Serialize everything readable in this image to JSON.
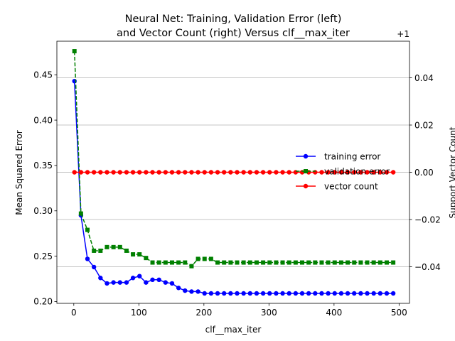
{
  "chart_data": {
    "type": "line",
    "title_lines": [
      "Neural Net: Training, Validation Error (left)",
      "and Vector Count (right) Versus clf__max_iter"
    ],
    "xlabel": "clf__max_iter",
    "ylabel": "Mean Squared Error",
    "ylabel_right": "Support Vector Count",
    "right_offset_text": "+1",
    "xlim": [
      -26,
      516
    ],
    "ylim": [
      0.198,
      0.487
    ],
    "ylim_right": [
      -0.0555,
      0.0555
    ],
    "x_ticks": [
      0,
      100,
      200,
      300,
      400,
      500
    ],
    "x_tick_labels": [
      "0",
      "100",
      "200",
      "300",
      "400",
      "500"
    ],
    "y_ticks": [
      0.2,
      0.25,
      0.3,
      0.35,
      0.4,
      0.45
    ],
    "y_tick_labels": [
      "0.20",
      "0.25",
      "0.30",
      "0.35",
      "0.40",
      "0.45"
    ],
    "y_ticks_right": [
      -0.04,
      -0.02,
      0.0,
      0.02,
      0.04
    ],
    "y_tick_labels_right": [
      "−0.04",
      "−0.02",
      "0.00",
      "0.02",
      "0.04"
    ],
    "grid": "horizontal lines at right-axis ticks",
    "legend_position": "center-right",
    "x": [
      1,
      11,
      21,
      31,
      41,
      51,
      61,
      71,
      81,
      91,
      101,
      111,
      121,
      131,
      141,
      151,
      161,
      171,
      181,
      191,
      201,
      211,
      221,
      231,
      241,
      251,
      261,
      271,
      281,
      291,
      301,
      311,
      321,
      331,
      341,
      351,
      361,
      371,
      381,
      391,
      401,
      411,
      421,
      431,
      441,
      451,
      461,
      471,
      481,
      491
    ],
    "series": [
      {
        "name": "training error",
        "axis": "left",
        "color": "#0000ff",
        "marker": "circle",
        "linestyle": "solid",
        "values": [
          0.443,
          0.295,
          0.247,
          0.238,
          0.226,
          0.22,
          0.221,
          0.221,
          0.221,
          0.226,
          0.228,
          0.221,
          0.224,
          0.224,
          0.221,
          0.22,
          0.215,
          0.212,
          0.211,
          0.211,
          0.209,
          0.209,
          0.209,
          0.209,
          0.209,
          0.209,
          0.209,
          0.209,
          0.209,
          0.209,
          0.209,
          0.209,
          0.209,
          0.209,
          0.209,
          0.209,
          0.209,
          0.209,
          0.209,
          0.209,
          0.209,
          0.209,
          0.209,
          0.209,
          0.209,
          0.209,
          0.209,
          0.209,
          0.209,
          0.209
        ]
      },
      {
        "name": "validation error",
        "axis": "left",
        "color": "#008000",
        "marker": "square",
        "linestyle": "dashed",
        "values": [
          0.476,
          0.297,
          0.279,
          0.256,
          0.256,
          0.26,
          0.26,
          0.26,
          0.256,
          0.252,
          0.252,
          0.248,
          0.243,
          0.243,
          0.243,
          0.243,
          0.243,
          0.243,
          0.239,
          0.247,
          0.247,
          0.247,
          0.243,
          0.243,
          0.243,
          0.243,
          0.243,
          0.243,
          0.243,
          0.243,
          0.243,
          0.243,
          0.243,
          0.243,
          0.243,
          0.243,
          0.243,
          0.243,
          0.243,
          0.243,
          0.243,
          0.243,
          0.243,
          0.243,
          0.243,
          0.243,
          0.243,
          0.243,
          0.243,
          0.243
        ]
      },
      {
        "name": "vector count",
        "axis": "right",
        "color": "#ff0000",
        "marker": "circle",
        "linestyle": "solid",
        "values": [
          1,
          1,
          1,
          1,
          1,
          1,
          1,
          1,
          1,
          1,
          1,
          1,
          1,
          1,
          1,
          1,
          1,
          1,
          1,
          1,
          1,
          1,
          1,
          1,
          1,
          1,
          1,
          1,
          1,
          1,
          1,
          1,
          1,
          1,
          1,
          1,
          1,
          1,
          1,
          1,
          1,
          1,
          1,
          1,
          1,
          1,
          1,
          1,
          1,
          1
        ]
      }
    ]
  }
}
